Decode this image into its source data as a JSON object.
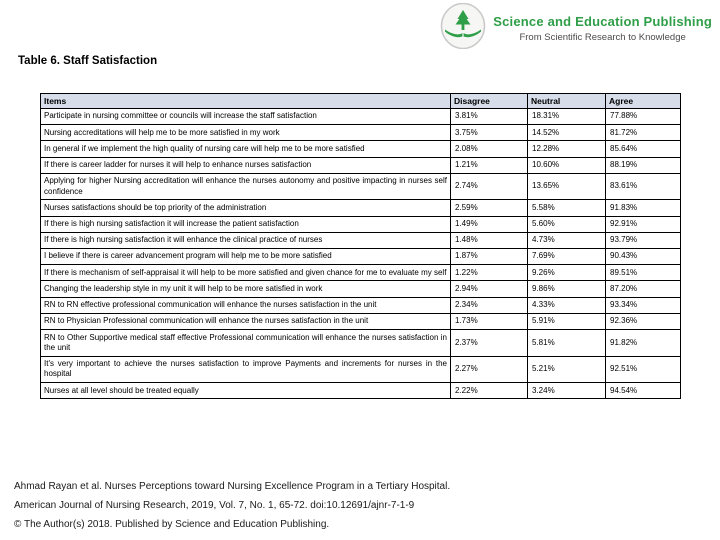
{
  "colors": {
    "brand_green": "#2f9e48",
    "table_header_bg": "#d7dee9",
    "subtitle_gray": "#4b4b4b"
  },
  "brand": {
    "logo_icon": "tree-over-open-book",
    "title": "Science and Education Publishing",
    "subtitle": "From Scientific Research to Knowledge"
  },
  "page": {
    "title": "Table 6. Staff Satisfaction"
  },
  "table": {
    "columns": [
      "Items",
      "Disagree",
      "Neutral",
      "Agree"
    ],
    "rows": [
      {
        "item": "Participate in nursing committee or councils will increase the staff satisfaction",
        "disagree": "3.81%",
        "neutral": "18.31%",
        "agree": "77.88%"
      },
      {
        "item": "Nursing accreditations will help me to be more satisfied in my work",
        "disagree": "3.75%",
        "neutral": "14.52%",
        "agree": "81.72%"
      },
      {
        "item": "In general if we implement the high quality of nursing care will help me to be more satisfied",
        "disagree": "2.08%",
        "neutral": "12.28%",
        "agree": "85.64%"
      },
      {
        "item": "If there is career ladder for nurses it will help to enhance nurses satisfaction",
        "disagree": "1.21%",
        "neutral": "10.60%",
        "agree": "88.19%"
      },
      {
        "item": "Applying for higher Nursing accreditation will enhance the nurses autonomy and positive impacting in nurses self confidence",
        "disagree": "2.74%",
        "neutral": "13.65%",
        "agree": "83.61%"
      },
      {
        "item": "Nurses satisfactions should be top priority of the administration",
        "disagree": "2.59%",
        "neutral": "5.58%",
        "agree": "91.83%"
      },
      {
        "item": "If there is high nursing satisfaction it will increase the patient satisfaction",
        "disagree": "1.49%",
        "neutral": "5.60%",
        "agree": "92.91%"
      },
      {
        "item": "If there is high nursing satisfaction it will enhance the clinical practice of nurses",
        "disagree": "1.48%",
        "neutral": "4.73%",
        "agree": "93.79%"
      },
      {
        "item": "I believe if there is career advancement program will help me to be more satisfied",
        "disagree": "1.87%",
        "neutral": "7.69%",
        "agree": "90.43%"
      },
      {
        "item": "If there is mechanism of self-appraisal it will help to be more satisfied and given chance for me to evaluate my self",
        "disagree": "1.22%",
        "neutral": "9.26%",
        "agree": "89.51%"
      },
      {
        "item": "Changing the leadership style in my unit it will help to be more satisfied in work",
        "disagree": "2.94%",
        "neutral": "9.86%",
        "agree": "87.20%"
      },
      {
        "item": "RN to RN effective professional communication will enhance the nurses satisfaction in the unit",
        "disagree": "2.34%",
        "neutral": "4.33%",
        "agree": "93.34%"
      },
      {
        "item": "RN to Physician Professional communication will enhance the nurses satisfaction in the unit",
        "disagree": "1.73%",
        "neutral": "5.91%",
        "agree": "92.36%"
      },
      {
        "item": "RN to Other Supportive medical staff effective Professional communication will enhance the nurses satisfaction in the unit",
        "disagree": "2.37%",
        "neutral": "5.81%",
        "agree": "91.82%"
      },
      {
        "item": "It's very important to achieve the nurses satisfaction to improve Payments and increments for nurses in the hospital",
        "disagree": "2.27%",
        "neutral": "5.21%",
        "agree": "92.51%"
      },
      {
        "item": "Nurses at all level should be treated equally",
        "disagree": "2.22%",
        "neutral": "3.24%",
        "agree": "94.54%"
      }
    ]
  },
  "footer": {
    "citation_line1": "Ahmad Rayan et al. Nurses Perceptions toward Nursing Excellence Program in a Tertiary Hospital.",
    "citation_line2": "American Journal of Nursing Research, 2019, Vol. 7, No. 1, 65-72. doi:10.12691/ajnr-7-1-9",
    "citation_line3": "© The Author(s) 2018. Published by Science and Education Publishing."
  }
}
